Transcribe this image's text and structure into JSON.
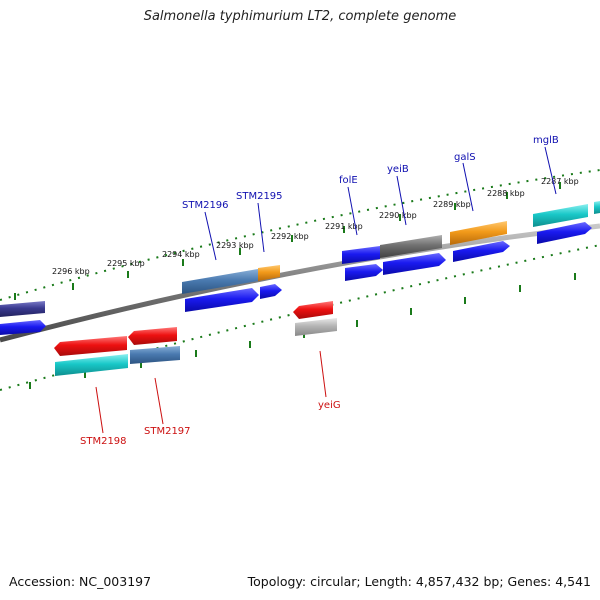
{
  "title": "Salmonella typhimurium LT2, complete genome",
  "footer": {
    "accession": "Accession: NC_003197",
    "topology": "Topology: circular; Length: 4,857,432 bp; Genes: 4,541"
  },
  "colors": {
    "forward_label": "#1010b0",
    "reverse_label": "#cc1010",
    "backbone": "#8a8a8a",
    "tick": "#1a7a1a",
    "blue": "#1a1af0",
    "red": "#ee1111",
    "cyan": "#19c8c8",
    "steelblue": "#4a7ab0",
    "orange": "#f29a1a",
    "gray": "#707070",
    "lightgray": "#b0b0b0",
    "navy": "#3a3a90"
  },
  "scale": {
    "unit": "kbp",
    "labels": [
      "2296 kbp",
      "2295 kbp",
      "2294 kbp",
      "2293 kbp",
      "2292 kbp",
      "2291 kbp",
      "2290 kbp",
      "2289 kbp",
      "2288 kbp",
      "2287 kbp"
    ]
  },
  "genes": {
    "forward": [
      {
        "name": "STM2196",
        "color": "#1010b0"
      },
      {
        "name": "STM2195",
        "color": "#1010b0"
      },
      {
        "name": "folE",
        "color": "#1010b0"
      },
      {
        "name": "yeiB",
        "color": "#1010b0"
      },
      {
        "name": "galS",
        "color": "#1010b0"
      },
      {
        "name": "mglB",
        "color": "#1010b0"
      }
    ],
    "reverse": [
      {
        "name": "STM2198",
        "color": "#cc1010"
      },
      {
        "name": "STM2197",
        "color": "#cc1010"
      },
      {
        "name": "yeiG",
        "color": "#cc1010"
      }
    ]
  }
}
